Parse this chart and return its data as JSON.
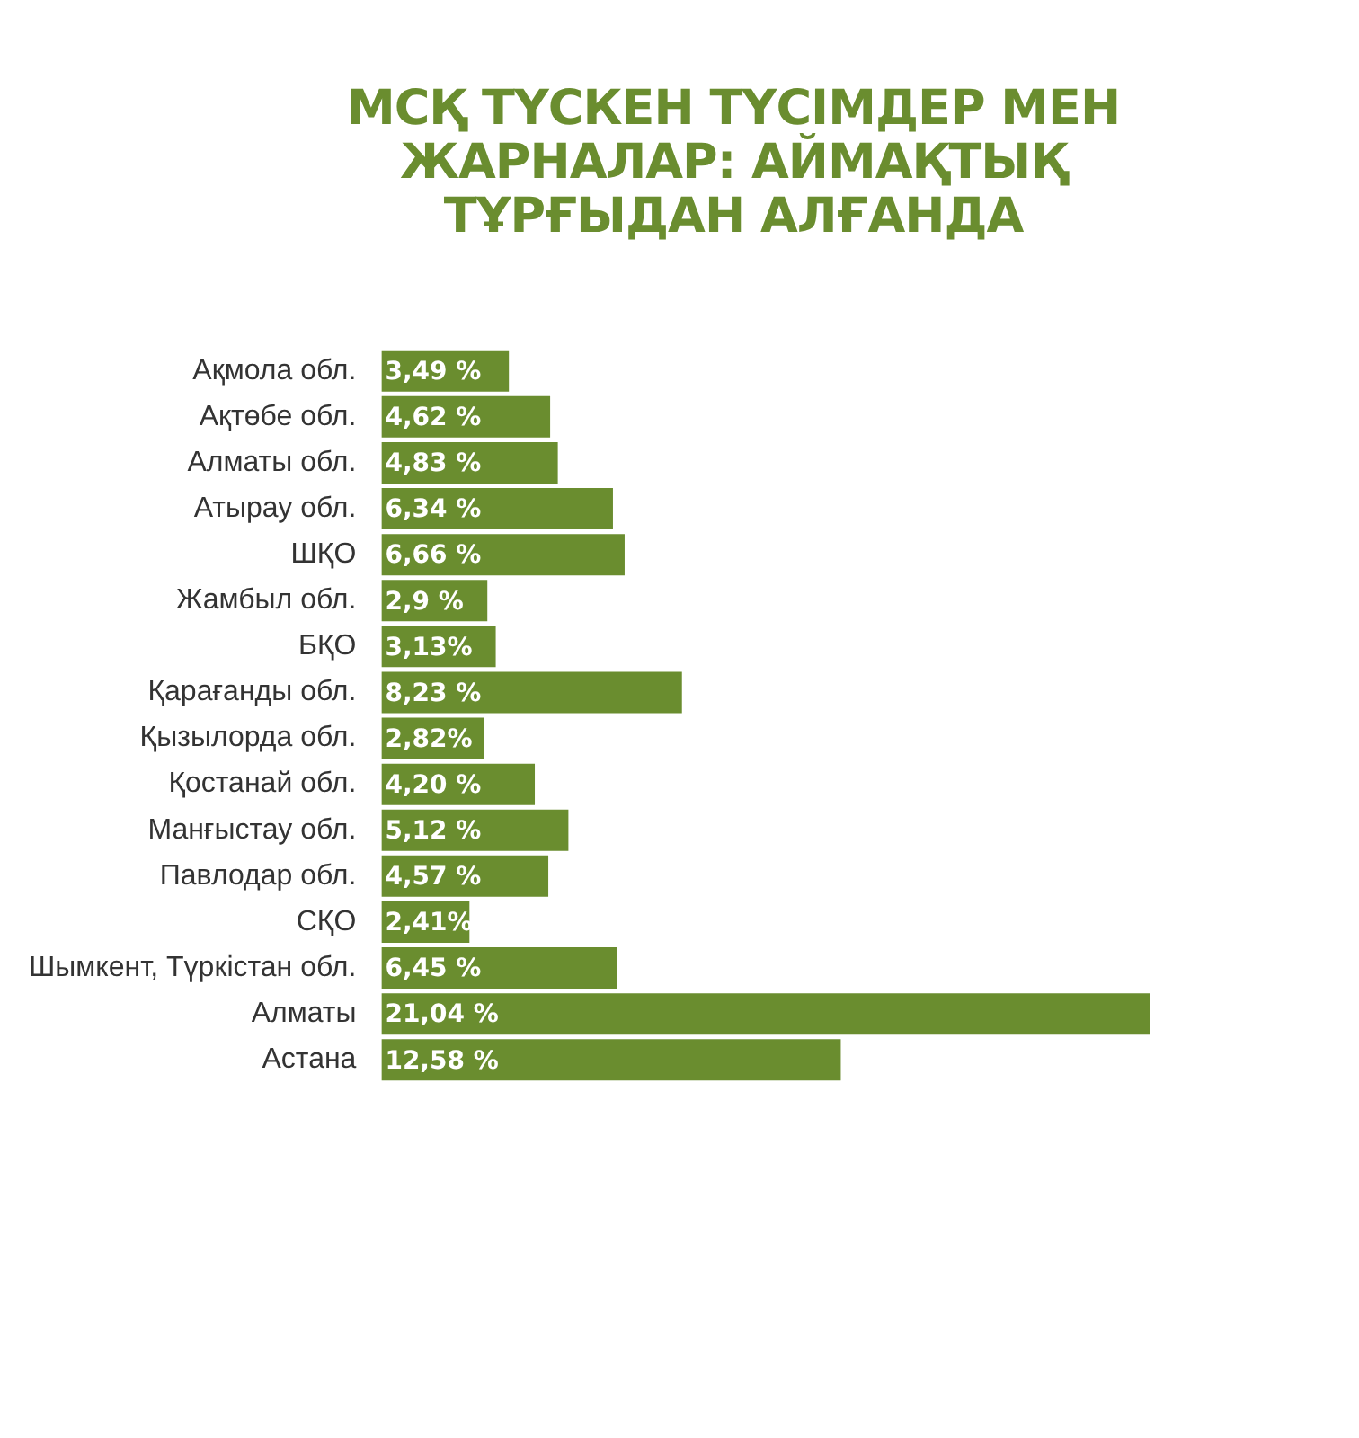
{
  "chart_data": {
    "type": "bar",
    "orientation": "horizontal",
    "title": "МСҚ ТҮСКЕН ТҮСІМДЕР МЕН ЖАРНАЛАР: АЙМАҚТЫҚ ТҰРҒЫДАН АЛҒАНДА",
    "categories": [
      "Ақмола обл.",
      "Ақтөбе обл.",
      "Алматы обл.",
      "Атырау обл.",
      "ШҚО",
      "Жамбыл обл.",
      "БҚО",
      "Қарағанды обл.",
      "Қызылорда обл.",
      "Қостанай обл.",
      "Манғыстау обл.",
      "Павлодар обл.",
      "СҚО",
      "Шымкент, Түркістан обл.",
      "Алматы",
      "Астана"
    ],
    "values": [
      3.49,
      4.62,
      4.83,
      6.34,
      6.66,
      2.9,
      3.13,
      8.23,
      2.82,
      4.2,
      5.12,
      4.57,
      2.41,
      6.45,
      21.04,
      12.58
    ],
    "value_labels": [
      "3,49 %",
      "4,62 %",
      "4,83 %",
      "6,34 %",
      "6,66 %",
      "2,9 %",
      "3,13%",
      "8,23 %",
      "2,82%",
      "4,20 %",
      "5,12 %",
      "4,57 %",
      "2,41%",
      "6,45 %",
      "21,04 %",
      "12,58 %"
    ],
    "color": "#6a8d2f",
    "legend": false,
    "tick_labels": "y"
  }
}
